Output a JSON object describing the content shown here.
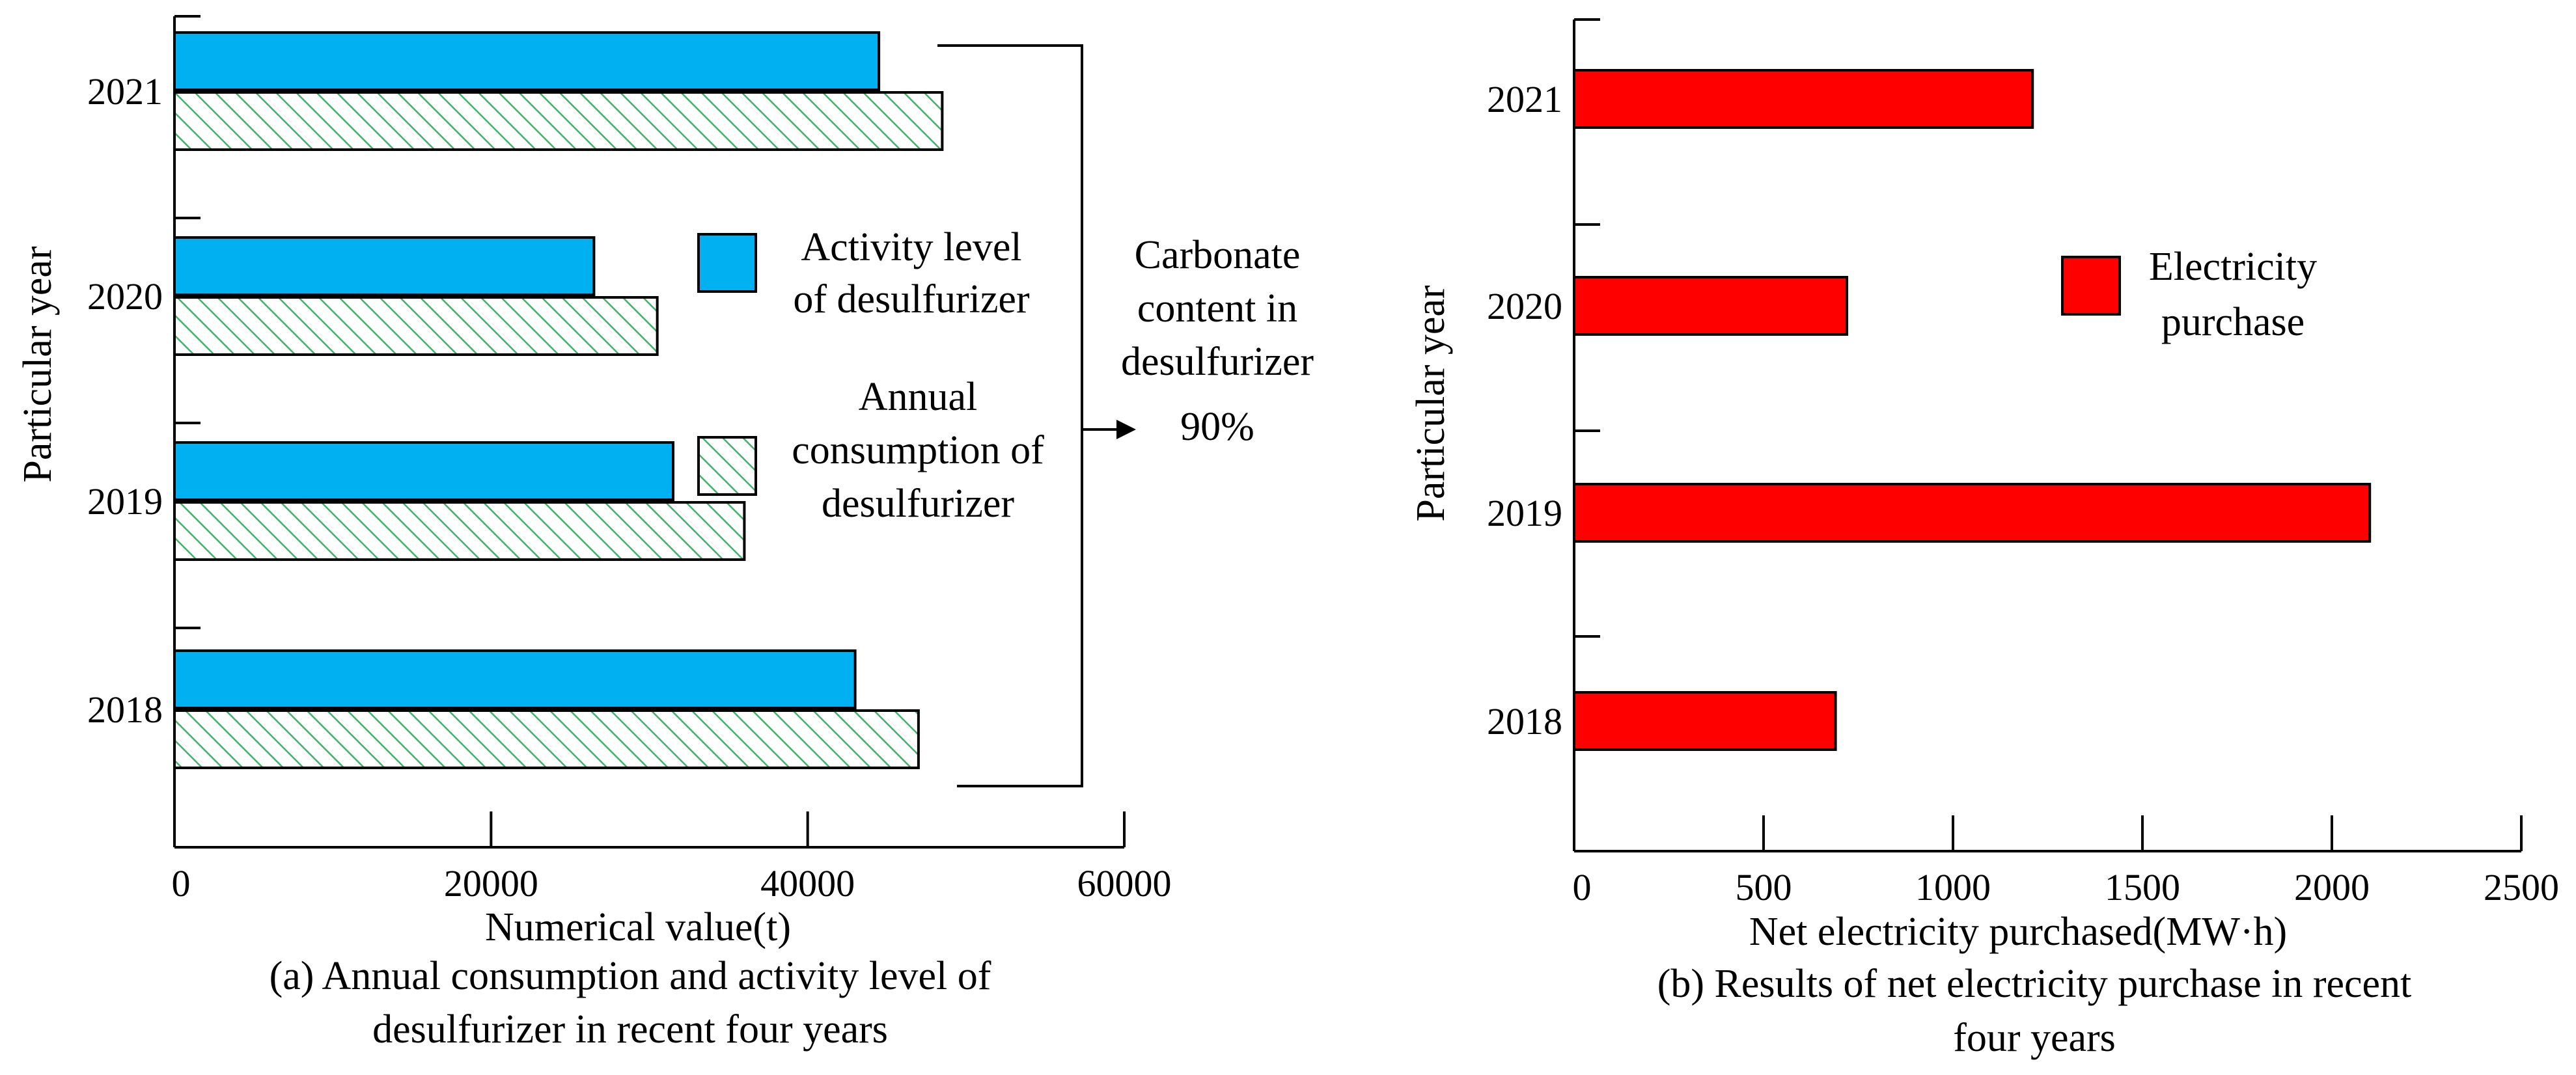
{
  "colors": {
    "activity": "#00b0f0",
    "consumption_stroke": "#3fb36a",
    "electricity": "#ff0000",
    "axis": "#000000"
  },
  "chart_data": [
    {
      "id": "a",
      "type": "bar",
      "orientation": "horizontal",
      "categories": [
        "2021",
        "2020",
        "2019",
        "2018"
      ],
      "series": [
        {
          "name": "Activity level of desulfurizer",
          "legend_lines": [
            "Activity level",
            "of desulfurizer"
          ],
          "values": [
            44500,
            26500,
            31500,
            43000
          ],
          "fill": "solid"
        },
        {
          "name": "Annual consumption of desulfurizer",
          "legend_lines": [
            "Annual",
            "consumption of",
            "desulfurizer"
          ],
          "values": [
            48500,
            30500,
            36000,
            47000
          ],
          "fill": "hatch"
        }
      ],
      "xlim": [
        0,
        60000
      ],
      "xticks": [
        0,
        20000,
        40000,
        60000
      ],
      "xtick_labels": [
        "0",
        "20000",
        "40000",
        "60000"
      ],
      "xlabel": "Numerical value(t)",
      "ylabel": "Particular year",
      "annotation_lines": [
        "Carbonate",
        "content in",
        "desulfurizer",
        "90%"
      ],
      "caption_lines": [
        "(a) Annual consumption and activity level of",
        "desulfurizer in recent four years"
      ]
    },
    {
      "id": "b",
      "type": "bar",
      "orientation": "horizontal",
      "categories": [
        "2021",
        "2020",
        "2019",
        "2018"
      ],
      "series": [
        {
          "name": "Electricity purchase",
          "legend_lines": [
            "Electricity",
            "purchase"
          ],
          "values": [
            1210,
            720,
            2100,
            690
          ],
          "fill": "solid"
        }
      ],
      "xlim": [
        0,
        2500
      ],
      "xticks": [
        0,
        500,
        1000,
        1500,
        2000,
        2500
      ],
      "xtick_labels": [
        "0",
        "500",
        "1000",
        "1500",
        "2000",
        "2500"
      ],
      "xlabel": "Net electricity purchased(MW·h)",
      "ylabel": "Particular year",
      "caption_lines": [
        "(b) Results of net electricity purchase in recent",
        "four years"
      ]
    }
  ]
}
